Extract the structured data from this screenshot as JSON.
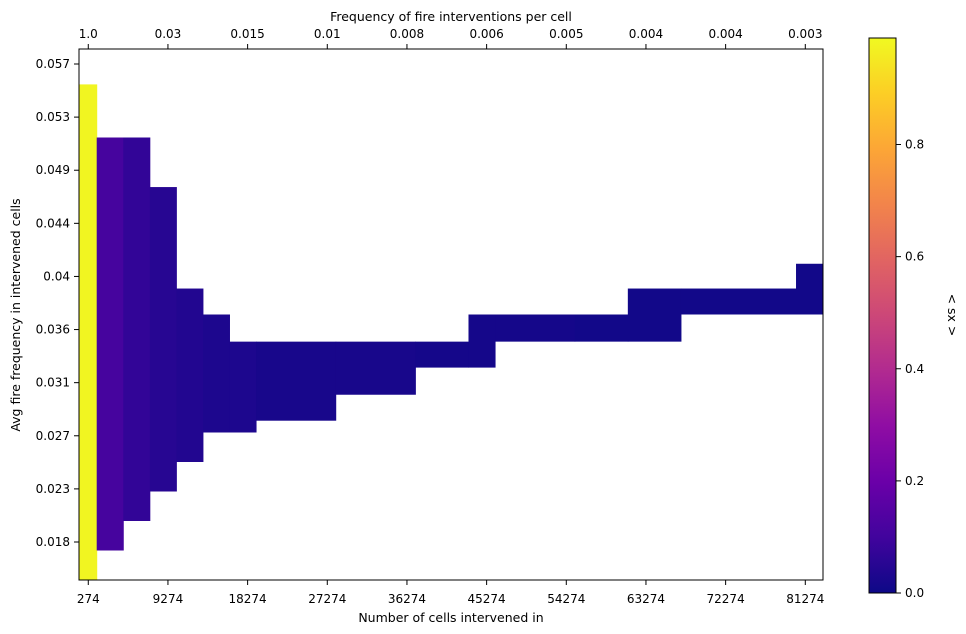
{
  "chart_data": {
    "type": "heatmap",
    "xlabel": "Number of cells intervened in",
    "ylabel": "Avg fire frequency in intervened cells",
    "top_xlabel": "Frequency of fire interventions per cell",
    "colorbar_label": "< sx >",
    "colormap": "plasma",
    "x_tick_labels": [
      "274",
      "9274",
      "18274",
      "27274",
      "36274",
      "45274",
      "54274",
      "63274",
      "72274",
      "81274"
    ],
    "top_tick_labels": [
      "1.0",
      "0.03",
      "0.015",
      "0.01",
      "0.008",
      "0.006",
      "0.005",
      "0.004",
      "0.004",
      "0.003"
    ],
    "y_tick_labels": [
      "0.018",
      "0.023",
      "0.027",
      "0.031",
      "0.036",
      "0.04",
      "0.044",
      "0.049",
      "0.053",
      "0.057"
    ],
    "colorbar_ticks": [
      "0.0",
      "0.2",
      "0.4",
      "0.6",
      "0.8"
    ],
    "x_range": [
      -774,
      83274
    ],
    "y_range": [
      0.0145,
      0.0595
    ],
    "colorbar_range": [
      0,
      0.99
    ],
    "grid": false,
    "cells": [
      {
        "x0": -774,
        "x1": 1226,
        "y0": 0.0145,
        "y1": 0.0565,
        "v": 0.98
      },
      {
        "x0": 1226,
        "x1": 4226,
        "y0": 0.017,
        "y1": 0.052,
        "v": 0.11
      },
      {
        "x0": 4226,
        "x1": 7226,
        "y0": 0.0195,
        "y1": 0.052,
        "v": 0.07
      },
      {
        "x0": 7226,
        "x1": 10226,
        "y0": 0.022,
        "y1": 0.0478,
        "v": 0.05
      },
      {
        "x0": 10226,
        "x1": 13226,
        "y0": 0.0245,
        "y1": 0.0392,
        "v": 0.04
      },
      {
        "x0": 13226,
        "x1": 16226,
        "y0": 0.027,
        "y1": 0.037,
        "v": 0.03
      },
      {
        "x0": 16226,
        "x1": 19226,
        "y0": 0.027,
        "y1": 0.0347,
        "v": 0.03
      },
      {
        "x0": 19226,
        "x1": 28226,
        "y0": 0.028,
        "y1": 0.0347,
        "v": 0.02
      },
      {
        "x0": 28226,
        "x1": 37226,
        "y0": 0.0302,
        "y1": 0.0347,
        "v": 0.02
      },
      {
        "x0": 37226,
        "x1": 43226,
        "y0": 0.0325,
        "y1": 0.0347,
        "v": 0.015
      },
      {
        "x0": 43226,
        "x1": 46226,
        "y0": 0.0325,
        "y1": 0.037,
        "v": 0.015
      },
      {
        "x0": 46226,
        "x1": 55226,
        "y0": 0.0347,
        "y1": 0.037,
        "v": 0.015
      },
      {
        "x0": 55226,
        "x1": 61226,
        "y0": 0.0347,
        "y1": 0.037,
        "v": 0.01
      },
      {
        "x0": 61226,
        "x1": 67226,
        "y0": 0.0347,
        "y1": 0.0392,
        "v": 0.01
      },
      {
        "x0": 67226,
        "x1": 80226,
        "y0": 0.037,
        "y1": 0.0392,
        "v": 0.01
      },
      {
        "x0": 80226,
        "x1": 83274,
        "y0": 0.037,
        "y1": 0.0413,
        "v": 0.01
      }
    ]
  }
}
